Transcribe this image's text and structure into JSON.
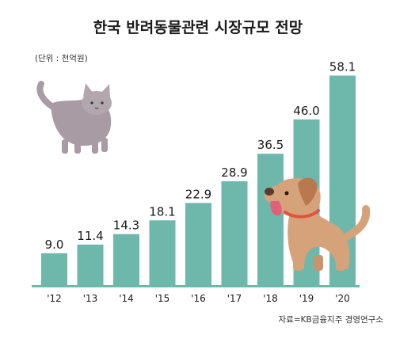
{
  "chart_data": {
    "type": "bar",
    "title": "한국 반려동물관련 시장규모 전망",
    "unit_note": "(단위 : 천억원)",
    "source": "자료=KB금융지주 경영연구소",
    "categories": [
      "'12",
      "'13",
      "'14",
      "'15",
      "'16",
      "'17",
      "'18",
      "'19",
      "'20"
    ],
    "values": [
      9.0,
      11.4,
      14.3,
      18.1,
      22.9,
      28.9,
      36.5,
      46.0,
      58.1
    ],
    "value_labels": [
      "9.0",
      "11.4",
      "14.3",
      "18.1",
      "22.9",
      "28.9",
      "36.5",
      "46.0",
      "58.1"
    ],
    "ylim": [
      0,
      60
    ],
    "grid": false,
    "legend": "none",
    "colors": {
      "bar": "#6db8ab",
      "baseline": "#6db8ab"
    }
  },
  "illustrations": [
    "cat-illustration",
    "dog-illustration"
  ]
}
